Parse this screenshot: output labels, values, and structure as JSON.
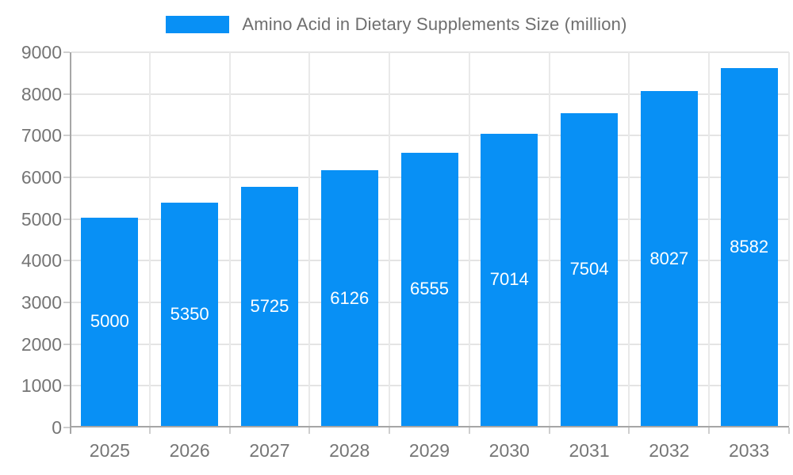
{
  "chart_data": {
    "type": "bar",
    "title": "Amino Acid in Dietary Supplements Size (million)",
    "legend_position": "top",
    "categories": [
      "2025",
      "2026",
      "2027",
      "2028",
      "2029",
      "2030",
      "2031",
      "2032",
      "2033"
    ],
    "values": [
      5000,
      5350,
      5725,
      6126,
      6555,
      7014,
      7504,
      8027,
      8582
    ],
    "series_name": "Amino Acid in Dietary Supplements Size (million)",
    "xlabel": "",
    "ylabel": "",
    "ylim": [
      0,
      9000
    ],
    "ytick_step": 1000,
    "grid": "both",
    "value_labels": "inside-center",
    "colors": {
      "bar": "#0890F5",
      "value_label": "#ffffff",
      "hgrid": "#e4e4e4",
      "vgrid": "#e9e9e9",
      "axis": "#a6a6a6",
      "tick": "#cfcfcf",
      "tick_label": "#757575",
      "legend_text": "#6e6e6e",
      "background": "#ffffff"
    }
  }
}
